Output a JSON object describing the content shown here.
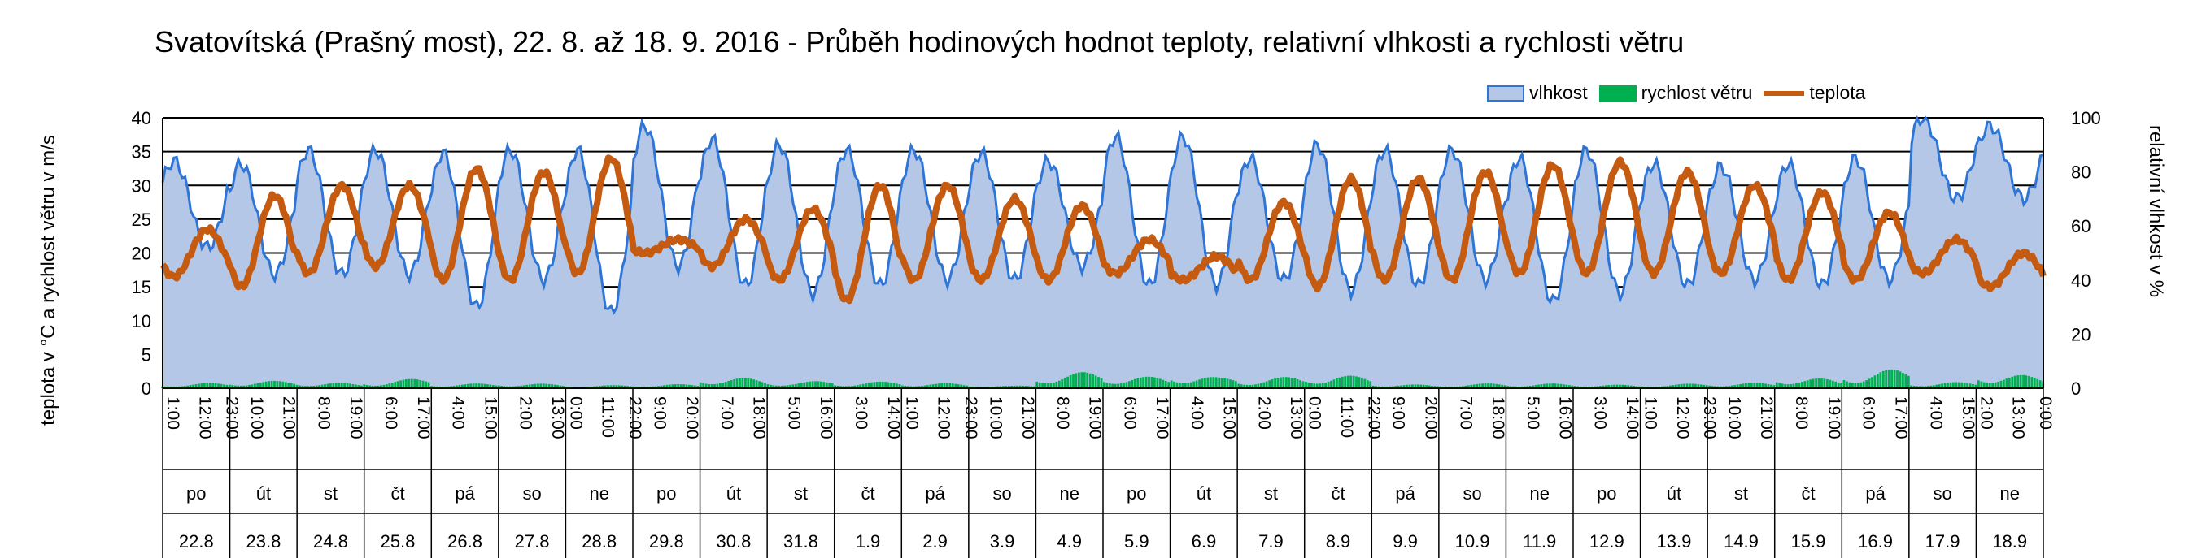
{
  "chart_data": {
    "type": "area",
    "title": "Svatovítská (Prašný most), 22. 8. až 18. 9. 2016 - Průběh hodinových hodnot teploty, relativní vlhkosti a rychlosti větru",
    "ylabel_left": "teplota v °C a rychlost větru v m/s",
    "ylabel_right": "relativní vlhkost v %",
    "ylim_left": [
      0,
      40
    ],
    "ylim_right": [
      0,
      100
    ],
    "yticks_left": [
      "0",
      "5",
      "10",
      "15",
      "20",
      "25",
      "30",
      "35",
      "40"
    ],
    "yticks_right": [
      "0",
      "20",
      "40",
      "60",
      "80",
      "100"
    ],
    "grid": true,
    "legend_position": "top-right",
    "days": [
      {
        "weekday": "po",
        "date": "22.8",
        "hours": [
          "1:00",
          "12:00",
          "23:00"
        ]
      },
      {
        "weekday": "út",
        "date": "23.8",
        "hours": [
          "10:00",
          "21:00"
        ]
      },
      {
        "weekday": "st",
        "date": "24.8",
        "hours": [
          "8:00",
          "19:00"
        ]
      },
      {
        "weekday": "čt",
        "date": "25.8",
        "hours": [
          "6:00",
          "17:00"
        ]
      },
      {
        "weekday": "pá",
        "date": "26.8",
        "hours": [
          "4:00",
          "15:00"
        ]
      },
      {
        "weekday": "so",
        "date": "27.8",
        "hours": [
          "2:00",
          "13:00"
        ]
      },
      {
        "weekday": "ne",
        "date": "28.8",
        "hours": [
          "0:00",
          "11:00",
          "22:00"
        ]
      },
      {
        "weekday": "po",
        "date": "29.8",
        "hours": [
          "9:00",
          "20:00"
        ]
      },
      {
        "weekday": "út",
        "date": "30.8",
        "hours": [
          "7:00",
          "18:00"
        ]
      },
      {
        "weekday": "st",
        "date": "31.8",
        "hours": [
          "5:00",
          "16:00"
        ]
      },
      {
        "weekday": "čt",
        "date": "1.9",
        "hours": [
          "3:00",
          "14:00"
        ]
      },
      {
        "weekday": "pá",
        "date": "2.9",
        "hours": [
          "1:00",
          "12:00",
          "23:00"
        ]
      },
      {
        "weekday": "so",
        "date": "3.9",
        "hours": [
          "10:00",
          "21:00"
        ]
      },
      {
        "weekday": "ne",
        "date": "4.9",
        "hours": [
          "8:00",
          "19:00"
        ]
      },
      {
        "weekday": "po",
        "date": "5.9",
        "hours": [
          "6:00",
          "17:00"
        ]
      },
      {
        "weekday": "út",
        "date": "6.9",
        "hours": [
          "4:00",
          "15:00"
        ]
      },
      {
        "weekday": "st",
        "date": "7.9",
        "hours": [
          "2:00",
          "13:00"
        ]
      },
      {
        "weekday": "čt",
        "date": "8.9",
        "hours": [
          "0:00",
          "11:00",
          "22:00"
        ]
      },
      {
        "weekday": "pá",
        "date": "9.9",
        "hours": [
          "9:00",
          "20:00"
        ]
      },
      {
        "weekday": "so",
        "date": "10.9",
        "hours": [
          "7:00",
          "18:00"
        ]
      },
      {
        "weekday": "ne",
        "date": "11.9",
        "hours": [
          "5:00",
          "16:00"
        ]
      },
      {
        "weekday": "po",
        "date": "12.9",
        "hours": [
          "3:00",
          "14:00"
        ]
      },
      {
        "weekday": "út",
        "date": "13.9",
        "hours": [
          "1:00",
          "12:00",
          "23:00"
        ]
      },
      {
        "weekday": "st",
        "date": "14.9",
        "hours": [
          "10:00",
          "21:00"
        ]
      },
      {
        "weekday": "čt",
        "date": "15.9",
        "hours": [
          "8:00",
          "19:00"
        ]
      },
      {
        "weekday": "pá",
        "date": "16.9",
        "hours": [
          "6:00",
          "17:00"
        ]
      },
      {
        "weekday": "so",
        "date": "17.9",
        "hours": [
          "4:00",
          "15:00"
        ]
      },
      {
        "weekday": "ne",
        "date": "18.9",
        "hours": [
          "2:00",
          "13:00",
          "0:00"
        ]
      }
    ],
    "series": [
      {
        "name": "vlhkost",
        "axis": "right",
        "color": "#2e75d6",
        "fill": "#b4c7e7",
        "daily_max": [
          84,
          83,
          88,
          88,
          87,
          88,
          88,
          97,
          92,
          90,
          88,
          88,
          87,
          84,
          93,
          93,
          85,
          90,
          88,
          88,
          85,
          88,
          83,
          82,
          83,
          85,
          100,
          97
        ],
        "daily_min": [
          52,
          42,
          42,
          42,
          30,
          40,
          28,
          45,
          38,
          35,
          38,
          40,
          40,
          45,
          38,
          38,
          40,
          36,
          38,
          40,
          32,
          35,
          38,
          40,
          38,
          40,
          70,
          70
        ]
      },
      {
        "name": "rychlost větru",
        "axis": "left",
        "color": "#00b050",
        "daily_max": [
          0.9,
          1.1,
          1.0,
          1.7,
          0.7,
          0.8,
          0.6,
          0.6,
          1.7,
          1.5,
          1.0,
          0.8,
          0.6,
          2.5,
          1.8,
          2.6,
          1.8,
          1.9,
          0.8,
          0.8,
          0.7,
          0.7,
          0.8,
          0.8,
          1.8,
          3.5,
          0.9,
          2.3
        ]
      },
      {
        "name": "teplota",
        "axis": "left",
        "color": "#c55a11",
        "daily_max": [
          23.5,
          28.5,
          30,
          30,
          32.5,
          32,
          34,
          22,
          25,
          26.5,
          30,
          30,
          28,
          27,
          22,
          19.5,
          27.5,
          31,
          31,
          32,
          33,
          33.5,
          32,
          30,
          29,
          26,
          22,
          20
        ],
        "daily_min": [
          16.5,
          15,
          17,
          18,
          16,
          16,
          17,
          20,
          18,
          16,
          13,
          16,
          16,
          16,
          17,
          16,
          16,
          15,
          16,
          16,
          17,
          17,
          17,
          17,
          16,
          16,
          17,
          15
        ]
      }
    ]
  }
}
